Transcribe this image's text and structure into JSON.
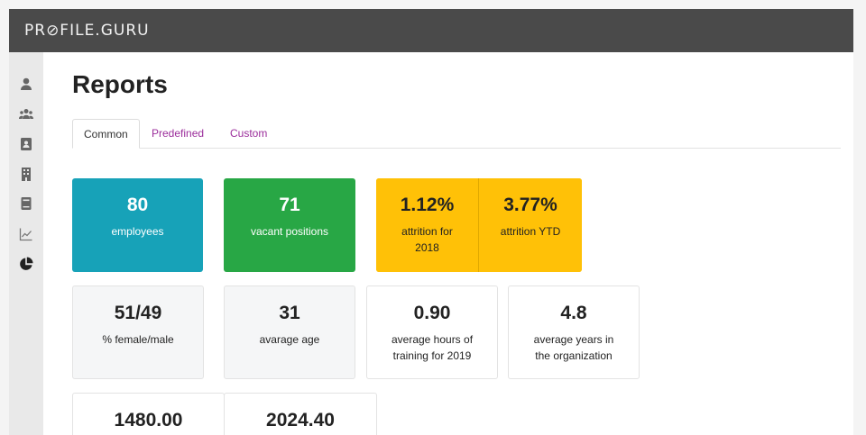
{
  "app": {
    "logo": "PR⊘FILE.GURU"
  },
  "page": {
    "title": "Reports"
  },
  "tabs": [
    {
      "label": "Common"
    },
    {
      "label": "Predefined"
    },
    {
      "label": "Custom"
    }
  ],
  "sidebar": {
    "icons": [
      "user-icon",
      "users-icon",
      "contact-card-icon",
      "building-icon",
      "book-icon",
      "chart-line-icon",
      "pie-chart-icon"
    ]
  },
  "stats": {
    "employees": {
      "value": "80",
      "label": "employees"
    },
    "vacant": {
      "value": "71",
      "label": "vacant positions"
    },
    "attrition_2018": {
      "value": "1.12%",
      "label_line1": "attrition for",
      "label_line2": "2018"
    },
    "attrition_ytd": {
      "value": "3.77%",
      "label": "attrition YTD"
    },
    "gender": {
      "value": "51/49",
      "label": "% female/male"
    },
    "age": {
      "value": "31",
      "label": "avarage age"
    },
    "training": {
      "value": "0.90",
      "label_line1": "average hours of",
      "label_line2": "training for 2019"
    },
    "tenure": {
      "value": "4.8",
      "label_line1": "average years in",
      "label_line2": "the organization"
    },
    "row3_a": {
      "value": "1480.00"
    },
    "row3_b": {
      "value": "2024.40"
    }
  },
  "colors": {
    "topbar": "#4a4a4a",
    "blue": "#17a2b8",
    "green": "#28a745",
    "yellow": "#ffc107",
    "tab_link": "#9b2d9b"
  }
}
